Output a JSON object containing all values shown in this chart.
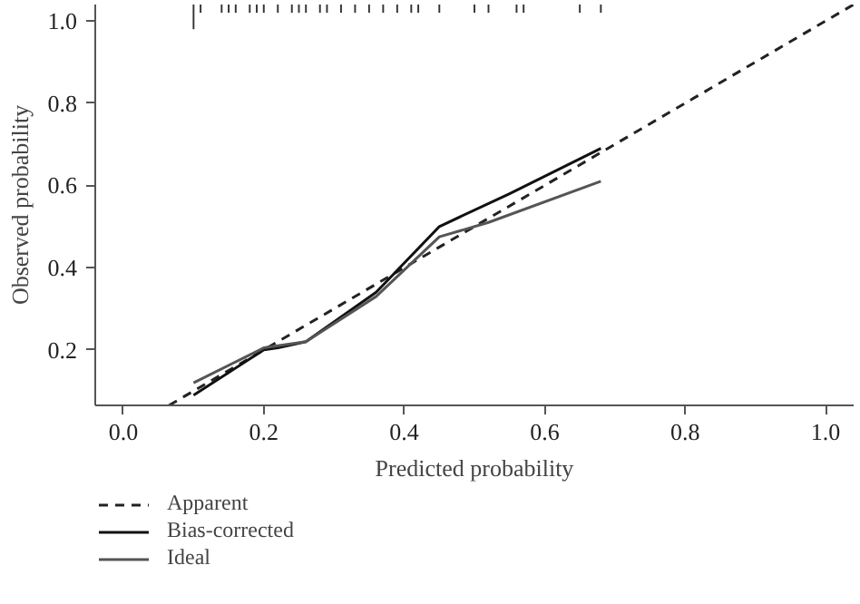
{
  "chart_data": {
    "type": "line",
    "xlabel": "Predicted probability",
    "ylabel": "Observed probability",
    "xlim": [
      -0.04,
      1.04
    ],
    "ylim": [
      0.065,
      1.04
    ],
    "xticks": [
      {
        "value": 0,
        "label": "0.0"
      },
      {
        "value": 0.2,
        "label": "0.2"
      },
      {
        "value": 0.4,
        "label": "0.4"
      },
      {
        "value": 0.6,
        "label": "0.6"
      },
      {
        "value": 0.8,
        "label": "0.8"
      },
      {
        "value": 1,
        "label": "1.0"
      }
    ],
    "yticks": [
      {
        "value": 0.2,
        "label": "0.2"
      },
      {
        "value": 0.4,
        "label": "0.4"
      },
      {
        "value": 0.6,
        "label": "0.6"
      },
      {
        "value": 0.8,
        "label": "0.8"
      },
      {
        "value": 1,
        "label": "1.0"
      }
    ],
    "grid": false,
    "legend": "bottom",
    "series": [
      {
        "name": "Apparent",
        "color": "#222222",
        "line_style": "dashed",
        "x": [
          0.065,
          1.04
        ],
        "values": [
          0.065,
          1.04
        ]
      },
      {
        "name": "Bias-corrected",
        "color": "#111111",
        "line_style": "solid",
        "x": [
          0.1,
          0.2,
          0.22,
          0.26,
          0.36,
          0.45,
          0.55,
          0.68
        ],
        "values": [
          0.09,
          0.2,
          0.205,
          0.22,
          0.34,
          0.5,
          0.58,
          0.69
        ]
      },
      {
        "name": "Ideal",
        "color": "#555555",
        "line_style": "solid",
        "x": [
          0.1,
          0.2,
          0.26,
          0.36,
          0.45,
          0.52,
          0.68
        ],
        "values": [
          0.12,
          0.205,
          0.22,
          0.33,
          0.475,
          0.51,
          0.61
        ]
      },
      {
        "type": "bar",
        "color": "#333333",
        "base": [
          0.98,
          1.02,
          1.02,
          1.02,
          1.02,
          1.02,
          1.02,
          1.02,
          1.02,
          1.02,
          1.02,
          1.02,
          1.02,
          1.02,
          1.02,
          1.02,
          1.02,
          1.02,
          1.02,
          1.02,
          1.02,
          1.02,
          1.02,
          1.02,
          1.02,
          1.02,
          1.02,
          1.02
        ],
        "x": [
          0.1,
          0.11,
          0.14,
          0.15,
          0.16,
          0.18,
          0.19,
          0.2,
          0.22,
          0.24,
          0.25,
          0.26,
          0.28,
          0.29,
          0.31,
          0.33,
          0.35,
          0.37,
          0.39,
          0.41,
          0.42,
          0.45,
          0.5,
          0.52,
          0.56,
          0.57,
          0.65,
          0.68
        ],
        "values": [
          0.06,
          0.02,
          0.02,
          0.02,
          0.02,
          0.02,
          0.02,
          0.02,
          0.02,
          0.02,
          0.02,
          0.02,
          0.02,
          0.02,
          0.02,
          0.02,
          0.02,
          0.02,
          0.02,
          0.02,
          0.02,
          0.02,
          0.02,
          0.02,
          0.02,
          0.02,
          0.02,
          0.02
        ]
      }
    ]
  }
}
